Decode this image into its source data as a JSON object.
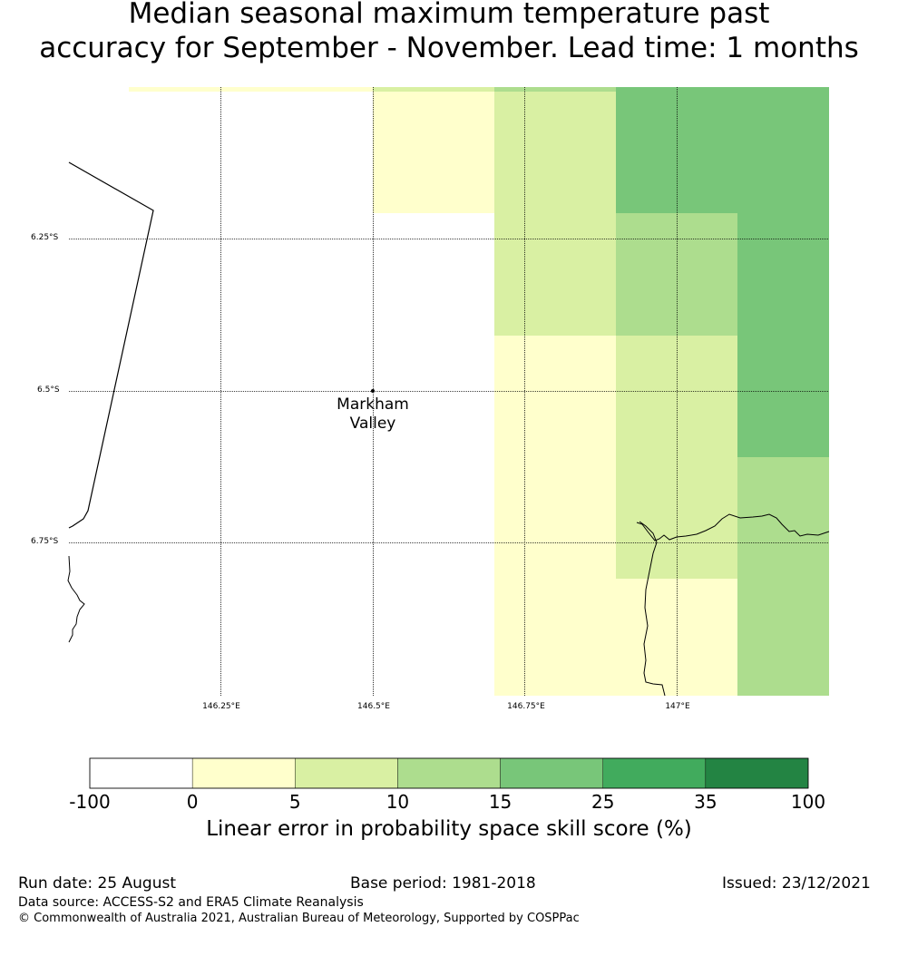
{
  "title_line1": "Median seasonal maximum temperature past",
  "title_line2": "accuracy for September - November. Lead time: 1 months",
  "map": {
    "latitude_labels": [
      "6.25°S",
      "6.5°S",
      "6.75°S"
    ],
    "longitude_labels": [
      "146.25°E",
      "146.5°E",
      "146.75°E",
      "147°E"
    ],
    "place_label_line1": "Markham",
    "place_label_line2": "Valley",
    "cell_colors": {
      "0-5": "#ffffcc",
      "5-10": "#d9f0a3",
      "10-15": "#addd8e",
      "15-25": "#78c679"
    }
  },
  "colorbar": {
    "ticks": [
      "-100",
      "0",
      "5",
      "10",
      "15",
      "25",
      "35",
      "100"
    ],
    "colors": [
      "#ffffff",
      "#ffffcc",
      "#d9f0a3",
      "#addd8e",
      "#78c679",
      "#41ab5d",
      "#238443"
    ],
    "label": "Linear error in probability space skill score (%)"
  },
  "footer": {
    "run_date": "Run date: 25 August",
    "base_period": "Base period: 1981-2018",
    "issued": "Issued: 23/12/2021",
    "data_source": "Data source: ACCESS-S2 and ERA5 Climate Reanalysis",
    "copyright": "© Commonwealth of Australia 2021, Australian Bureau of Meteorology, Supported by COSPPac"
  }
}
